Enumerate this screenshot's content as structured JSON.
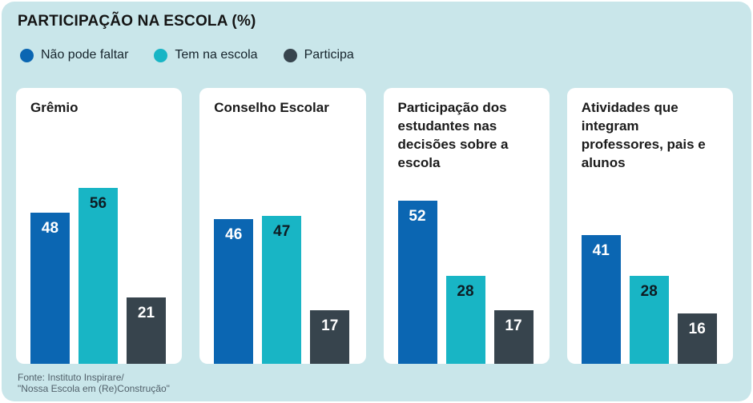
{
  "header": {
    "title": "PARTICIPAÇÃO NA ESCOLA (%)"
  },
  "colors": {
    "background": "#c9e6ea",
    "panel": "#ffffff",
    "series_blue": "#0b66b2",
    "series_cyan": "#18b5c5",
    "series_gray": "#37444d",
    "title_text": "#141414",
    "footer_text": "#51606a"
  },
  "chart_data": {
    "type": "bar",
    "title": "PARTICIPAÇÃO NA ESCOLA (%)",
    "unit": "%",
    "ylim": [
      0,
      60
    ],
    "grid": false,
    "legend_position": "top",
    "series": [
      {
        "name": "Não pode faltar",
        "color": "#0b66b2",
        "label_color": "#ffffff"
      },
      {
        "name": "Tem na escola",
        "color": "#18b5c5",
        "label_color": "#0e1c23"
      },
      {
        "name": "Participa",
        "color": "#37444d",
        "label_color": "#ffffff"
      }
    ],
    "panels": [
      {
        "title": "Grêmio",
        "values": [
          48,
          56,
          21
        ]
      },
      {
        "title": "Conselho Escolar",
        "values": [
          46,
          47,
          17
        ]
      },
      {
        "title": "Participação dos estudantes nas decisões sobre a escola",
        "values": [
          52,
          28,
          17
        ]
      },
      {
        "title": "Atividades que integram professores, pais e alunos",
        "values": [
          41,
          28,
          16
        ]
      }
    ]
  },
  "footer": {
    "line1": "Fonte: Instituto Inspirare/",
    "line2": "\"Nossa Escola em (Re)Construção\""
  }
}
